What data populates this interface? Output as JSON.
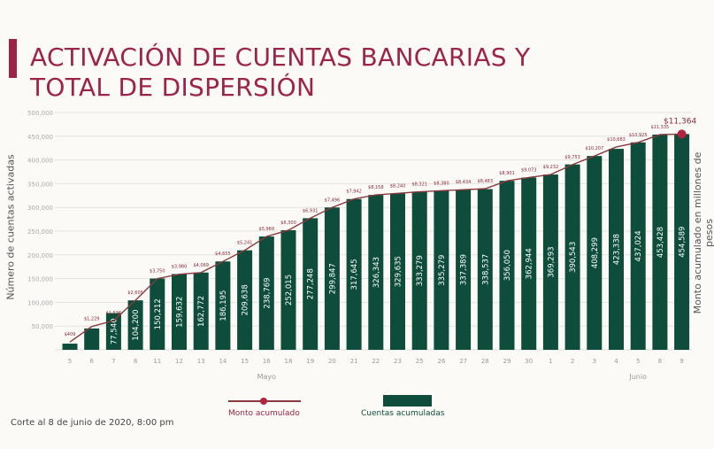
{
  "header": {
    "title_line1": "ACTIVACIÓN DE CUENTAS BANCARIAS Y",
    "title_line2": "TOTAL DE DISPERSIÓN"
  },
  "footer": {
    "note": "Corte al 8 de junio de 2020, 8:00 pm"
  },
  "colors": {
    "title": "#9d2449",
    "bars": "#0e4d3c",
    "line": "#8a3a3f",
    "marker": "#b0243f"
  },
  "chart_data": {
    "type": "bar+line",
    "ylabel": "Número de cuentas activadas",
    "y2label": "Monto acumulado en millones de pesos",
    "ylim": [
      0,
      500000
    ],
    "yticks": [
      "50,000",
      "100,000",
      "150,000",
      "200,000",
      "250,000",
      "300,000",
      "350,000",
      "400,000",
      "450,000",
      "500,000"
    ],
    "grid": true,
    "categories": [
      "5",
      "6",
      "7",
      "8",
      "11",
      "12",
      "13",
      "14",
      "15",
      "16",
      "18",
      "19",
      "20",
      "21",
      "22",
      "23",
      "25",
      "26",
      "27",
      "28",
      "29",
      "30",
      "1",
      "2",
      "3",
      "4",
      "5",
      "8",
      "9"
    ],
    "month_labels": [
      {
        "label": "Mayo",
        "index": 9
      },
      {
        "label": "Junio",
        "index": 26
      }
    ],
    "legend_position": "bottom",
    "series": [
      {
        "name": "Cuentas acumuladas",
        "type": "bar",
        "values": [
          13000,
          45000,
          77540,
          104200,
          150212,
          159632,
          162772,
          186195,
          209638,
          238769,
          252015,
          277248,
          299847,
          317645,
          326343,
          329635,
          333279,
          335279,
          337389,
          338537,
          356050,
          362944,
          369293,
          390543,
          408299,
          423338,
          437024,
          453428,
          454589
        ],
        "labels": [
          "",
          "",
          "77,540",
          "104,200",
          "150,212",
          "159,632",
          "162,772",
          "186,195",
          "209,638",
          "238,769",
          "252,015",
          "277,248",
          "299,847",
          "317,645",
          "326,343",
          "329,635",
          "333,279",
          "335,279",
          "337,389",
          "338,537",
          "356,050",
          "362,944",
          "369,293",
          "390,543",
          "408,299",
          "423,338",
          "437,024",
          "453,428",
          "454,589"
        ]
      },
      {
        "name": "Monto acumulado",
        "type": "line",
        "values": [
          409,
          1229,
          1536,
          2605,
          3750,
          3980,
          4069,
          4655,
          5241,
          5969,
          6300,
          6931,
          7496,
          7942,
          8158,
          8240,
          8321,
          8380,
          8434,
          8483,
          8901,
          9073,
          9232,
          9753,
          10207,
          10683,
          10925,
          11335,
          11364
        ],
        "labels": [
          "$409",
          "$1,229",
          "$1,536",
          "$2,605",
          "$3,750",
          "$3,980",
          "$4,069",
          "$4,655",
          "$5,241",
          "$5,969",
          "$6,300",
          "$6,931",
          "$7,496",
          "$7,942",
          "$8,158",
          "$8,240",
          "$8,321",
          "$8,380",
          "$8,434",
          "$8,483",
          "$8,901",
          "$9,073",
          "$9,232",
          "$9,753",
          "$10,207",
          "$10,683",
          "$10,925",
          "$11,335",
          "$11,364"
        ]
      }
    ]
  }
}
